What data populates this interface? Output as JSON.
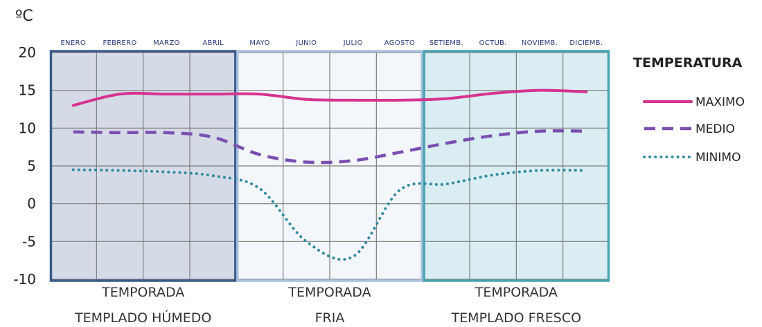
{
  "chart_data": {
    "type": "line",
    "unit": "ºC",
    "categories": [
      "ENERO",
      "FEBRERO",
      "MARZO",
      "ABRIL",
      "MAYO",
      "JUNIO",
      "JULIO",
      "AGOSTO",
      "SETIEMB.",
      "OCTUB.",
      "NOVIEMB.",
      "DICIEMB."
    ],
    "ylim": [
      -10,
      20
    ],
    "yticks": [
      "20",
      "15",
      "10",
      "5",
      "0",
      "-5",
      "-10"
    ],
    "ytick_values": [
      20,
      15,
      10,
      5,
      0,
      -5,
      -10
    ],
    "grid": true,
    "legend_title": "TEMPERATURA",
    "legend_position": "right",
    "series": [
      {
        "name": "MAXIMO",
        "style": "solid",
        "color": "#d6338f",
        "values": [
          13.0,
          14.5,
          14.5,
          14.5,
          14.5,
          13.8,
          13.7,
          13.7,
          13.9,
          14.6,
          15.0,
          14.8
        ]
      },
      {
        "name": "MEDIO",
        "style": "dashed",
        "color": "#7a4fb0",
        "values": [
          9.5,
          9.4,
          9.4,
          8.8,
          6.5,
          5.5,
          5.7,
          6.8,
          8.0,
          9.0,
          9.6,
          9.6
        ]
      },
      {
        "name": "MINIMO",
        "style": "dotted",
        "color": "#2f8aa0",
        "values": [
          4.5,
          4.4,
          4.2,
          3.7,
          2.0,
          -5.0,
          -7.0,
          1.8,
          2.6,
          3.8,
          4.4,
          4.4
        ]
      }
    ],
    "seasons": [
      {
        "line1": "TEMPORADA",
        "line2": "TEMPLADO HÚMEDO",
        "months": [
          1,
          4
        ],
        "fill": "#d5dbe6",
        "border": "#3c5a8c"
      },
      {
        "line1": "TEMPORADA",
        "line2": "FRIA",
        "months": [
          5,
          8
        ],
        "fill": "#f3f6fb",
        "border": "#a9c2de"
      },
      {
        "line1": "TEMPORADA",
        "line2": "TEMPLADO FRESCO",
        "months": [
          9,
          12
        ],
        "fill": "#d9edf2",
        "border": "#4aa3b3"
      }
    ]
  }
}
